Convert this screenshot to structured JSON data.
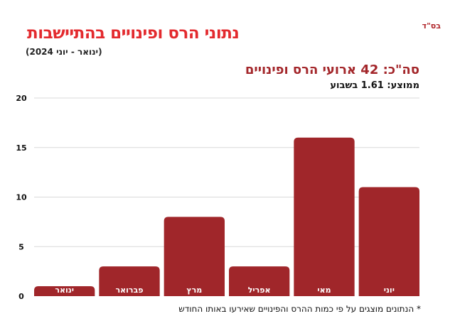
{
  "header": {
    "blessing": "בס\"ד",
    "title": "נתוני הרס ופינויים בהתיישבות",
    "subtitle": "(ינואר - יוני 2024)",
    "total": "סה\"כ: 42 ארועי הרס ופינויים",
    "average": "ממוצע: 1.61 בשבוע"
  },
  "footnote": "* הנתונים מוצגים על פי כמות ההרס והפינויים שאירעו באותו החודש",
  "colors": {
    "bar": "#a0262a",
    "title": "#e32a2e",
    "grid": "#d9d9d9"
  },
  "chart_data": {
    "type": "bar",
    "title": "נתוני הרס ופינויים בהתיישבות",
    "categories": [
      "ינואר",
      "פברואר",
      "מרץ",
      "אפריל",
      "מאי",
      "יוני"
    ],
    "values": [
      1,
      3,
      8,
      3,
      16,
      11
    ],
    "yticks": [
      "0",
      "5",
      "10",
      "15",
      "20"
    ],
    "ylim": [
      0,
      20
    ],
    "xlabel": "",
    "ylabel": "",
    "grid": true
  }
}
